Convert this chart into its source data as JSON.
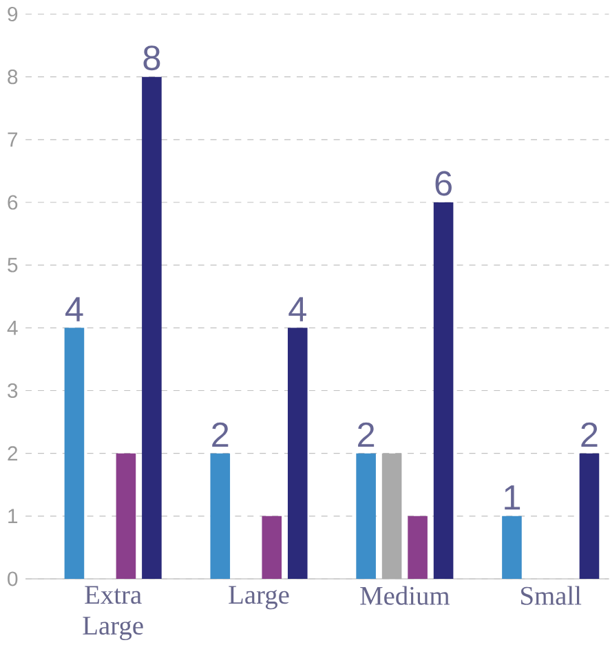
{
  "chart_data": {
    "type": "bar",
    "categories": [
      "Extra Large",
      "Large",
      "Medium",
      "Small"
    ],
    "series": [
      {
        "color": "#3d8ec9",
        "values": [
          4,
          2,
          2,
          1
        ],
        "value_labels": [
          "4",
          "2",
          "2",
          "1"
        ]
      },
      {
        "color": "#aaaaaa",
        "values": [
          null,
          null,
          2,
          null
        ]
      },
      {
        "color": "#8b3f8c",
        "values": [
          2,
          1,
          1,
          null
        ]
      },
      {
        "color": "#2b2a7a",
        "values": [
          8,
          4,
          6,
          2
        ],
        "value_labels": [
          "8",
          "4",
          "6",
          "2"
        ]
      }
    ],
    "ylim": [
      0,
      9
    ],
    "yticks": [
      0,
      1,
      2,
      3,
      4,
      5,
      6,
      7,
      8,
      9
    ],
    "grid": "y"
  }
}
